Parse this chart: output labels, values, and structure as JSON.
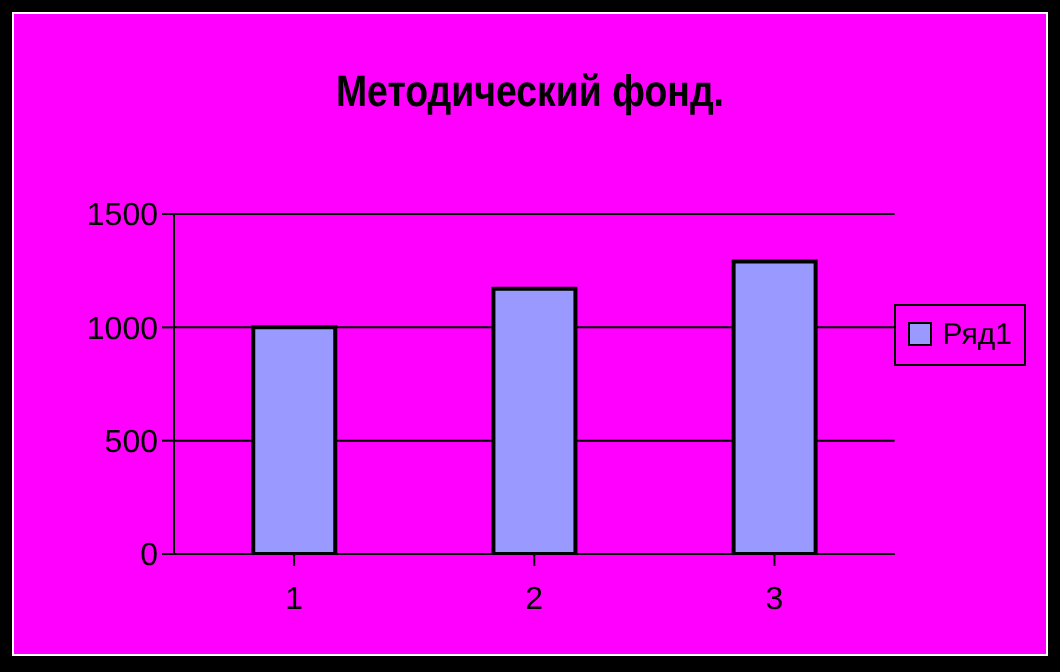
{
  "chart_data": {
    "type": "bar",
    "title": "Методический фонд.",
    "categories": [
      "1",
      "2",
      "3"
    ],
    "series": [
      {
        "name": "Ряд1",
        "color": "#9999ff",
        "values": [
          1000,
          1170,
          1290
        ]
      }
    ],
    "ylim": [
      0,
      1500
    ],
    "yticks": [
      0,
      500,
      1000,
      1500
    ],
    "grid": "y",
    "legend": "right"
  }
}
